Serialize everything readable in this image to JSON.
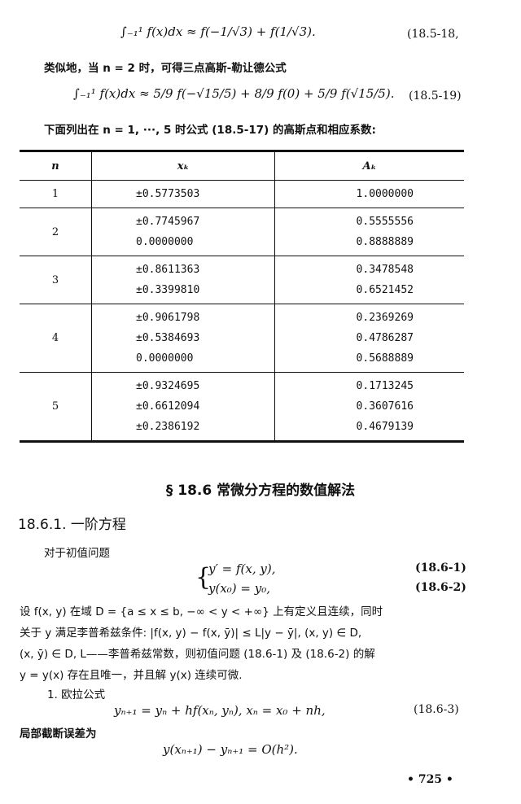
{
  "eq_18_5_18": {
    "formula": "∫₋₁¹ f(x)dx ≈ f(−1/√3) + f(1/√3).",
    "number": "(18.5-18,"
  },
  "text1": "类似地，当 n = 2 时，可得三点高斯-勒让德公式",
  "eq_18_5_19": {
    "formula": "∫₋₁¹ f(x)dx ≈ 5/9 f(−√15/5) + 8/9 f(0) + 5/9 f(√15/5).",
    "number": "(18.5-19)"
  },
  "text2": "下面列出在 n = 1, ···, 5 时公式 (18.5-17) 的高斯点和相应系数:",
  "table": {
    "headers": [
      "n",
      "xₖ",
      "Aₖ"
    ],
    "groups": [
      {
        "n": "1",
        "x": [
          "±0.5773503"
        ],
        "A": [
          "1.0000000"
        ]
      },
      {
        "n": "2",
        "x": [
          "±0.7745967",
          "0.0000000"
        ],
        "A": [
          "0.5555556",
          "0.8888889"
        ]
      },
      {
        "n": "3",
        "x": [
          "±0.8611363",
          "±0.3399810"
        ],
        "A": [
          "0.3478548",
          "0.6521452"
        ]
      },
      {
        "n": "4",
        "x": [
          "±0.9061798",
          "±0.5384693",
          "0.0000000"
        ],
        "A": [
          "0.2369269",
          "0.4786287",
          "0.5688889"
        ]
      },
      {
        "n": "5",
        "x": [
          "±0.9324695",
          "±0.6612094",
          "±0.2386192"
        ],
        "A": [
          "0.1713245",
          "0.3607616",
          "0.4679139"
        ]
      }
    ]
  },
  "section_title": "§ 18.6    常微分方程的数值解法",
  "subsection_title": "18.6.1. 一阶方程",
  "text3": "对于初值问题",
  "eq_18_6_1": {
    "formula": "y′ = f(x, y),",
    "number": "(18.6-1)"
  },
  "eq_18_6_2": {
    "formula": "y(x₀) = y₀,",
    "number": "(18.6-2)"
  },
  "para": [
    "设 f(x, y) 在域 D = {a ≤ x ≤ b, −∞ < y < +∞} 上有定义且连续，同时",
    "关于 y 满足李普希兹条件:  |f(x, y) − f(x, ȳ)| ≤ L|y − ȳ|, (x, y) ∈ D,",
    "(x, ȳ) ∈ D, L——李普希兹常数，则初值问题 (18.6-1) 及 (18.6-2) 的解",
    "y = y(x) 存在且唯一，并且解 y(x) 连续可微."
  ],
  "item1": "1. 欧拉公式",
  "eq_18_6_3": {
    "formula": "yₙ₊₁ = yₙ + hf(xₙ, yₙ),  xₙ = x₀ + nh,",
    "number": "(18.6-3)"
  },
  "text4": "局部截断误差为",
  "eq_error": {
    "formula": "y(xₙ₊₁) − yₙ₊₁ = O(h²)."
  },
  "page_number": "• 725 •"
}
